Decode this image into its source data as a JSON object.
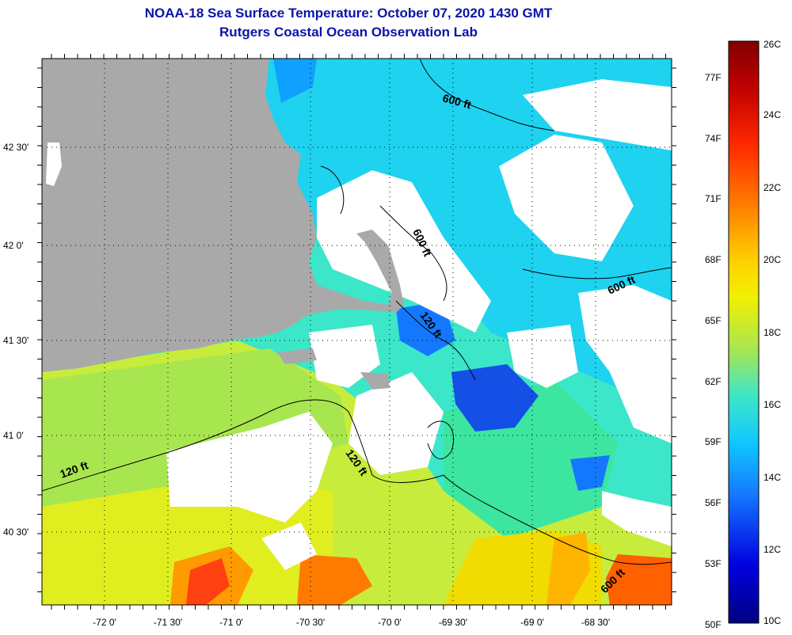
{
  "header": {
    "title": "NOAA-18 Sea Surface Temperature:  October 07, 2020 1430 GMT",
    "subtitle": "Rutgers Coastal Ocean Observation Lab"
  },
  "map": {
    "lon_labels": [
      "-72 0'",
      "-71 30'",
      "-71 0'",
      "-70 30'",
      "-70 0'",
      "-69 30'",
      "-69 0'",
      "-68 30'"
    ],
    "lat_labels": [
      "42 30'",
      "42 0'",
      "41 30'",
      "41 0'",
      "40 30'"
    ],
    "contour_labels": [
      "600 ft",
      "600 ft",
      "600 ft",
      "120 ft",
      "120 ft",
      "120 ft",
      "600 ft"
    ],
    "colors": {
      "land": "#a9a9a9",
      "cloud": "#ffffff",
      "contour": "#000000"
    }
  },
  "colorbar": {
    "celsius_labels": [
      "26C",
      "24C",
      "22C",
      "20C",
      "18C",
      "16C",
      "14C",
      "12C",
      "10C"
    ],
    "fahrenheit_labels": [
      "77F",
      "74F",
      "71F",
      "68F",
      "65F",
      "62F",
      "59F",
      "56F",
      "53F",
      "50F"
    ],
    "stops": [
      "#800000",
      "#c00000",
      "#ff2a00",
      "#ff8c00",
      "#ffd200",
      "#f0f000",
      "#a8e650",
      "#3ce6c8",
      "#10c8ff",
      "#1478ff",
      "#0000e0",
      "#000080"
    ]
  }
}
